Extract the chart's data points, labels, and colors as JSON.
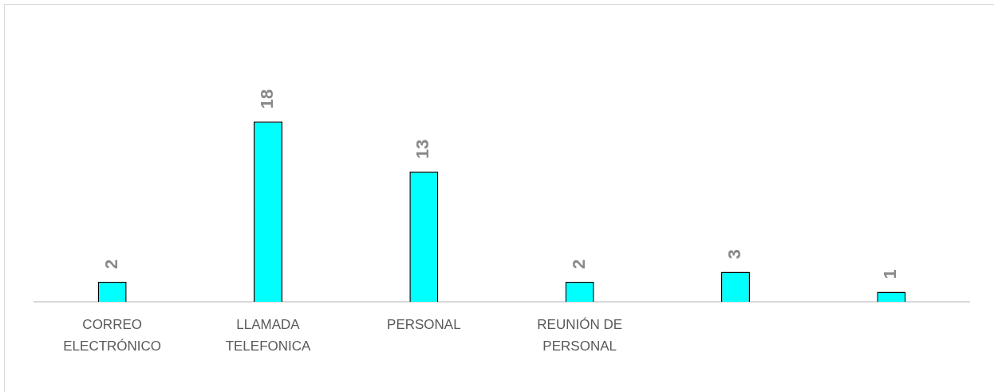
{
  "chart_data": {
    "type": "bar",
    "categories": [
      "CORREO ELECTRÓNICO",
      "LLAMADA TELEFONICA",
      "PERSONAL",
      "REUNIÓN DE PERSONAL",
      null,
      null
    ],
    "values": [
      2,
      18,
      13,
      2,
      3,
      1
    ],
    "color": "#00ffff",
    "data_labels": true
  }
}
